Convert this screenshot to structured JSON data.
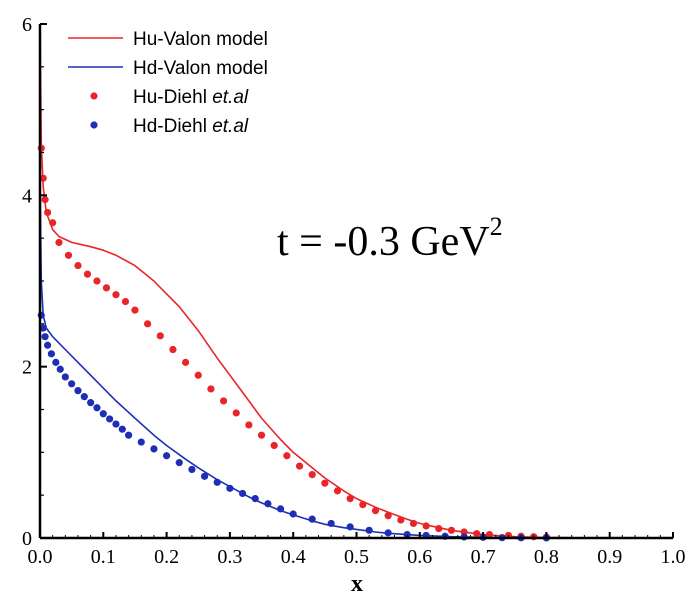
{
  "chart_data": {
    "type": "line",
    "title": "",
    "xlabel": "x",
    "ylabel": "",
    "xlim": [
      0.0,
      1.0
    ],
    "ylim": [
      0,
      6
    ],
    "grid": false,
    "legend_position": "top-left",
    "x_ticks": [
      "0.0",
      "0.1",
      "0.2",
      "0.3",
      "0.4",
      "0.5",
      "0.6",
      "0.7",
      "0.8",
      "0.9",
      "1.0"
    ],
    "y_ticks": [
      "0",
      "2",
      "4",
      "6"
    ],
    "annotation": {
      "text": "t = -0.3 GeV",
      "superscript": "2"
    },
    "series": [
      {
        "name": "Hu-Valon model",
        "kind": "line",
        "color": "#e8262a",
        "x": [
          0.0,
          0.002,
          0.005,
          0.01,
          0.02,
          0.03,
          0.05,
          0.08,
          0.1,
          0.12,
          0.15,
          0.18,
          0.2,
          0.22,
          0.25,
          0.28,
          0.3,
          0.33,
          0.35,
          0.38,
          0.4,
          0.43,
          0.45,
          0.48,
          0.5,
          0.53,
          0.55,
          0.58,
          0.6,
          0.63,
          0.65,
          0.68,
          0.7,
          0.73,
          0.75,
          0.78,
          0.8,
          0.85,
          0.9,
          0.95,
          1.0
        ],
        "y": [
          6.0,
          4.6,
          4.1,
          3.8,
          3.6,
          3.52,
          3.45,
          3.4,
          3.36,
          3.3,
          3.18,
          3.0,
          2.85,
          2.7,
          2.42,
          2.1,
          1.9,
          1.6,
          1.4,
          1.15,
          1.0,
          0.82,
          0.7,
          0.55,
          0.46,
          0.36,
          0.3,
          0.22,
          0.17,
          0.12,
          0.09,
          0.06,
          0.04,
          0.025,
          0.015,
          0.008,
          0.005,
          0.002,
          0.0,
          0.0,
          0.0
        ]
      },
      {
        "name": "Hd-Valon model",
        "kind": "line",
        "color": "#1f2fb5",
        "x": [
          0.0,
          0.002,
          0.005,
          0.01,
          0.02,
          0.04,
          0.06,
          0.08,
          0.1,
          0.12,
          0.15,
          0.18,
          0.2,
          0.23,
          0.25,
          0.28,
          0.3,
          0.33,
          0.35,
          0.38,
          0.4,
          0.43,
          0.45,
          0.48,
          0.5,
          0.53,
          0.55,
          0.58,
          0.6,
          0.65,
          0.7,
          0.75,
          0.8,
          0.9,
          1.0
        ],
        "y": [
          4.2,
          3.0,
          2.6,
          2.45,
          2.35,
          2.2,
          2.05,
          1.9,
          1.75,
          1.6,
          1.4,
          1.2,
          1.08,
          0.92,
          0.82,
          0.68,
          0.6,
          0.48,
          0.41,
          0.32,
          0.27,
          0.2,
          0.16,
          0.12,
          0.1,
          0.07,
          0.055,
          0.04,
          0.03,
          0.015,
          0.007,
          0.003,
          0.001,
          0.0,
          0.0
        ]
      },
      {
        "name": "Hu-Diehl et.al",
        "name_plain": "Hu-Diehl",
        "name_italic": "et.al",
        "kind": "scatter",
        "color": "#e8262a",
        "x": [
          0.002,
          0.005,
          0.008,
          0.012,
          0.02,
          0.03,
          0.045,
          0.06,
          0.075,
          0.09,
          0.105,
          0.12,
          0.135,
          0.15,
          0.17,
          0.19,
          0.21,
          0.23,
          0.25,
          0.27,
          0.29,
          0.31,
          0.33,
          0.35,
          0.37,
          0.39,
          0.41,
          0.43,
          0.45,
          0.47,
          0.49,
          0.51,
          0.53,
          0.55,
          0.57,
          0.59,
          0.61,
          0.63,
          0.65,
          0.67,
          0.69,
          0.71,
          0.74,
          0.76,
          0.78,
          0.8
        ],
        "y": [
          4.55,
          4.2,
          3.95,
          3.8,
          3.68,
          3.45,
          3.3,
          3.18,
          3.08,
          3.0,
          2.92,
          2.84,
          2.76,
          2.66,
          2.5,
          2.36,
          2.2,
          2.05,
          1.9,
          1.74,
          1.6,
          1.46,
          1.32,
          1.2,
          1.08,
          0.96,
          0.84,
          0.74,
          0.64,
          0.55,
          0.46,
          0.39,
          0.32,
          0.26,
          0.21,
          0.17,
          0.14,
          0.11,
          0.09,
          0.07,
          0.05,
          0.04,
          0.03,
          0.02,
          0.015,
          0.01
        ]
      },
      {
        "name": "Hd-Diehl et.al",
        "name_plain": "Hd-Diehl",
        "name_italic": "et.al",
        "kind": "scatter",
        "color": "#1f2fb5",
        "x": [
          0.002,
          0.005,
          0.008,
          0.012,
          0.018,
          0.025,
          0.032,
          0.04,
          0.05,
          0.06,
          0.07,
          0.08,
          0.09,
          0.1,
          0.11,
          0.12,
          0.13,
          0.14,
          0.16,
          0.18,
          0.2,
          0.22,
          0.24,
          0.26,
          0.28,
          0.3,
          0.32,
          0.34,
          0.36,
          0.38,
          0.4,
          0.43,
          0.46,
          0.49,
          0.52,
          0.55,
          0.58,
          0.61,
          0.64,
          0.67,
          0.7,
          0.73,
          0.76,
          0.8
        ],
        "y": [
          2.6,
          2.45,
          2.35,
          2.25,
          2.15,
          2.05,
          1.97,
          1.88,
          1.8,
          1.72,
          1.65,
          1.58,
          1.52,
          1.45,
          1.39,
          1.33,
          1.27,
          1.2,
          1.12,
          1.04,
          0.96,
          0.88,
          0.8,
          0.72,
          0.65,
          0.58,
          0.52,
          0.46,
          0.4,
          0.34,
          0.28,
          0.22,
          0.17,
          0.13,
          0.09,
          0.06,
          0.04,
          0.03,
          0.02,
          0.012,
          0.008,
          0.004,
          0.002,
          0.001
        ]
      }
    ]
  }
}
